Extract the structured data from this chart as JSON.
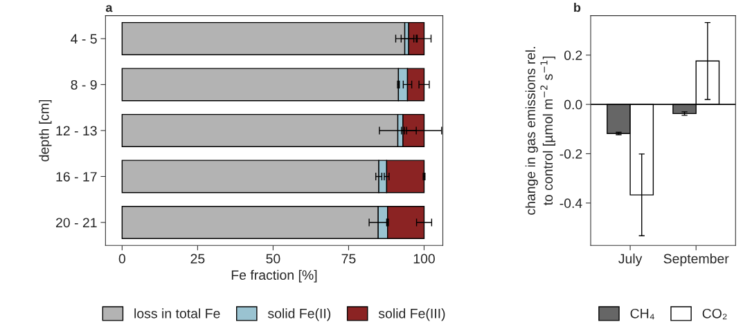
{
  "chart_data": [
    {
      "type": "bar",
      "title": "a",
      "orientation": "horizontal",
      "stacked": true,
      "xlabel": "Fe fraction [%]",
      "ylabel": "depth [cm]",
      "categories": [
        "4 - 5",
        "8 - 9",
        "12 - 13",
        "16 - 17",
        "20 - 21"
      ],
      "series": [
        {
          "name": "loss in total Fe",
          "color": "#b3b3b3",
          "values": [
            93.6,
            91.5,
            91.3,
            85.0,
            84.8
          ],
          "errors": [
            3.0,
            0.3,
            6.1,
            1.0,
            3.0
          ]
        },
        {
          "name": "solid Fe(II)",
          "color": "#9ac3d1",
          "values": [
            1.3,
            3.0,
            1.7,
            2.6,
            3.1
          ],
          "errors": [
            2.5,
            1.4,
            0.5,
            0.8,
            0.3
          ]
        },
        {
          "name": "solid Fe(III)",
          "color": "#8b2323",
          "values": [
            5.1,
            5.5,
            7.0,
            12.4,
            12.1
          ],
          "errors": [
            2.3,
            1.7,
            5.8,
            0.3,
            2.5
          ]
        }
      ],
      "xlim": [
        -5.5,
        106.2
      ],
      "xticks": [
        0,
        25,
        50,
        75,
        100
      ],
      "grid": false,
      "legend": "bottom"
    },
    {
      "type": "bar",
      "title": "b",
      "ylabel": "change in gas emissions rel.\nto control [µmol m$^{−2}$ s$^{−1}$]",
      "categories": [
        "July",
        "September"
      ],
      "series": [
        {
          "name": "CH₄",
          "color": "#666666",
          "values": [
            -0.118,
            -0.037
          ],
          "errors": [
            0.005,
            0.007
          ]
        },
        {
          "name": "CO₂",
          "color": "#ffffff",
          "values": [
            -0.367,
            0.176
          ],
          "errors": [
            0.166,
            0.156
          ]
        }
      ],
      "ylim": [
        -0.572,
        0.36
      ],
      "yticks": [
        -0.4,
        -0.2,
        {
          "value": 0.0,
          "label": "0.0"
        },
        0.2
      ],
      "ref_lines": [
        {
          "axis": "y",
          "value": 0.0,
          "color": "#000000"
        }
      ],
      "grid": false,
      "legend": "bottom"
    }
  ]
}
